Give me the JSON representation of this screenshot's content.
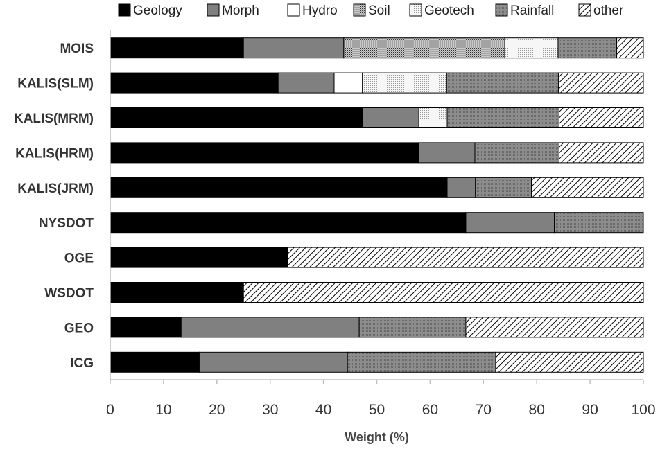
{
  "chart_data": {
    "type": "bar",
    "orientation": "horizontal",
    "stacked": true,
    "categories": [
      "MOIS",
      "KALIS(SLM)",
      "KALIS(MRM)",
      "KALIS(HRM)",
      "KALIS(JRM)",
      "NYSDOT",
      "OGE",
      "WSDOT",
      "GEO",
      "ICG"
    ],
    "series": [
      {
        "name": "Geology",
        "values": [
          25,
          31.5,
          47.4,
          57.9,
          63.2,
          66.7,
          33.3,
          25,
          13.3,
          16.7
        ],
        "color": "#000000",
        "pattern": "solid"
      },
      {
        "name": "Morph",
        "values": [
          18.8,
          10.5,
          10.5,
          10.5,
          5.3,
          16.6,
          0,
          0,
          33.4,
          27.8
        ],
        "color": "#808080",
        "pattern": "solid"
      },
      {
        "name": "Hydro",
        "values": [
          0,
          5.3,
          0,
          0,
          0,
          0,
          0,
          0,
          0,
          0
        ],
        "color": "#ffffff",
        "pattern": "solid"
      },
      {
        "name": "Soil",
        "values": [
          30.2,
          0,
          0,
          0,
          0,
          0,
          0,
          0,
          0,
          0
        ],
        "color": "#9a9a9a",
        "pattern": "dots-dense"
      },
      {
        "name": "Geotech",
        "values": [
          10,
          15.8,
          5.3,
          0,
          0,
          0,
          0,
          0,
          0,
          0
        ],
        "color": "#e0e0e0",
        "pattern": "dots-light"
      },
      {
        "name": "Rainfall",
        "values": [
          11,
          21,
          21,
          15.8,
          10.5,
          16.7,
          0,
          0,
          20,
          27.8
        ],
        "color": "#8a8a8a",
        "pattern": "dots-medium"
      },
      {
        "name": "other",
        "values": [
          5,
          15.9,
          15.8,
          15.8,
          21,
          0,
          66.7,
          75,
          33.3,
          27.7
        ],
        "color": "#ffffff",
        "pattern": "diagonal-hatch"
      }
    ],
    "xlabel": "Weight (%)",
    "ylabel": "",
    "xlim": [
      0,
      100
    ],
    "xticks": [
      "0",
      "10",
      "20",
      "30",
      "40",
      "50",
      "60",
      "70",
      "80",
      "90",
      "100"
    ],
    "grid": false,
    "legend_position": "top"
  }
}
